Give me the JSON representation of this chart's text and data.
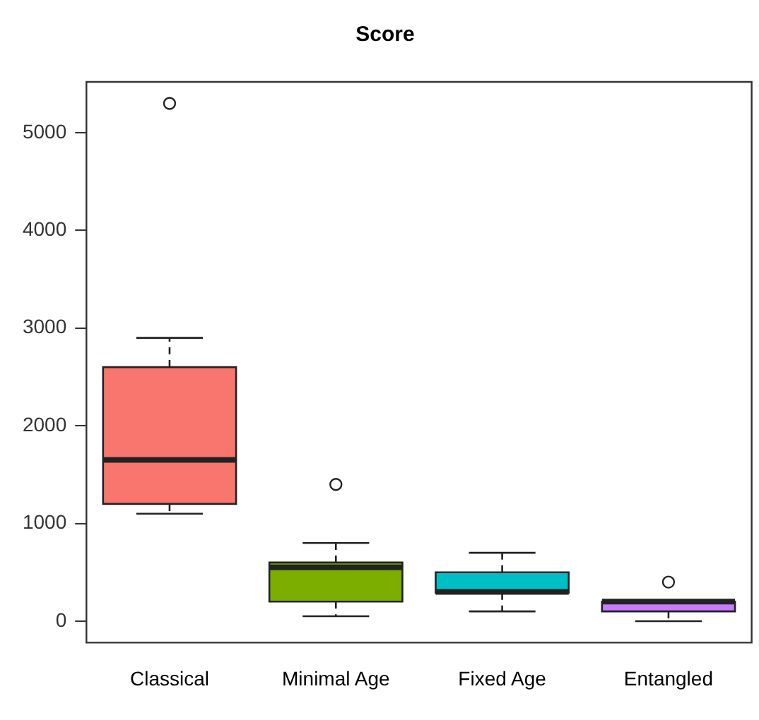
{
  "chart_data": {
    "type": "box",
    "title": "Score",
    "categories": [
      "Classical",
      "Minimal Age",
      "Fixed Age",
      "Entangled"
    ],
    "colors": [
      "#f8766d",
      "#7cae00",
      "#00bfc4",
      "#c77cff"
    ],
    "boxes": [
      {
        "low": 1100,
        "q1": 1200,
        "median": 1650,
        "q3": 2600,
        "high": 2900,
        "outliers": [
          5300
        ]
      },
      {
        "low": 50,
        "q1": 200,
        "median": 550,
        "q3": 600,
        "high": 800,
        "outliers": [
          1400
        ]
      },
      {
        "low": 100,
        "q1": 290,
        "median": 300,
        "q3": 500,
        "high": 700
      },
      {
        "low": 0,
        "q1": 100,
        "median": 200,
        "q3": 200,
        "high": 200,
        "outliers": [
          400
        ]
      }
    ],
    "ylim": [
      -220,
      5520
    ],
    "yticks": [
      0,
      1000,
      2000,
      3000,
      4000,
      5000
    ],
    "grid": false,
    "legend": false
  }
}
